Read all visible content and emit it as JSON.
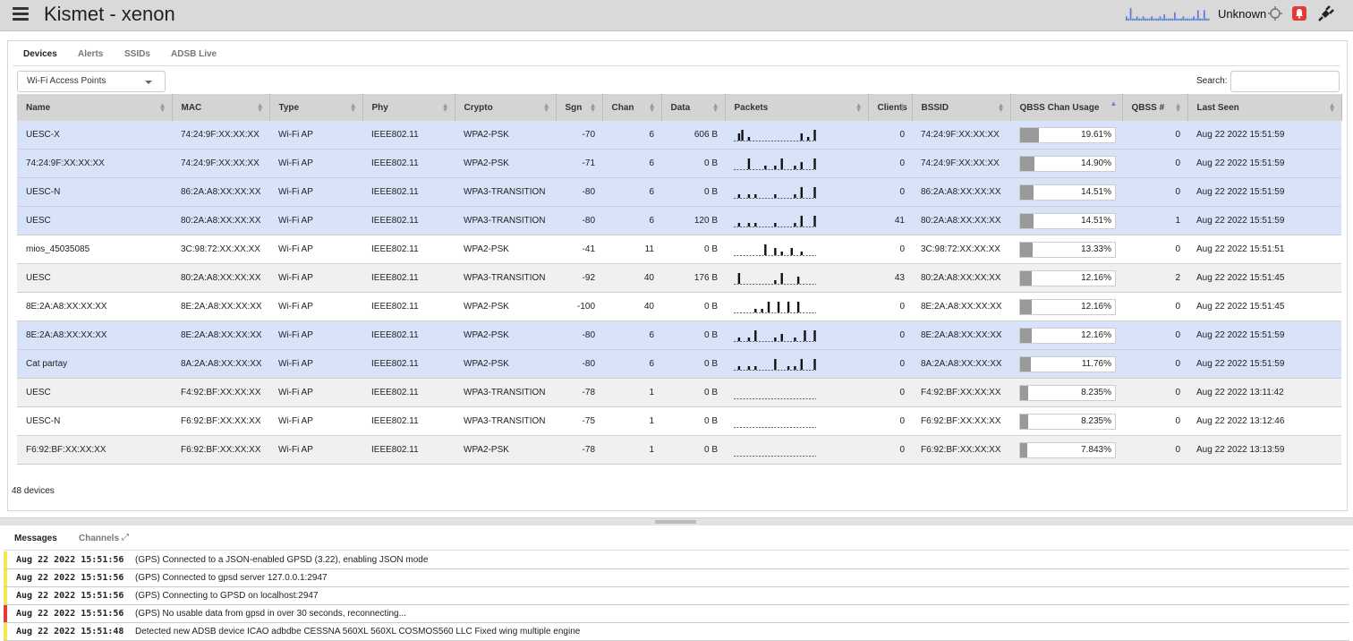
{
  "header": {
    "title": "Kismet - xenon",
    "gps_status": "Unknown",
    "sparkline": [
      2,
      1,
      6,
      1,
      1,
      2,
      1,
      1,
      2,
      1,
      1,
      1,
      2,
      1,
      1,
      1,
      2,
      1,
      3,
      1,
      1,
      1,
      1,
      4,
      1,
      1,
      1,
      2,
      1,
      1,
      1,
      1,
      2,
      1,
      5,
      1,
      1,
      5,
      1,
      1
    ],
    "colors": {
      "sparkline": "#5b7fd6",
      "alert": "#e53935"
    }
  },
  "tabs": [
    "Devices",
    "Alerts",
    "SSIDs",
    "ADSB Live"
  ],
  "toolbar": {
    "view_select": "Wi-Fi Access Points",
    "search_label": "Search:",
    "search_value": ""
  },
  "table": {
    "columns": [
      "Name",
      "MAC",
      "Type",
      "Phy",
      "Crypto",
      "Sgn",
      "Chan",
      "Data",
      "Packets",
      "Clients",
      "BSSID",
      "QBSS Chan Usage",
      "QBSS #",
      "Last Seen"
    ],
    "sorted_column": "QBSS Chan Usage",
    "rows": [
      {
        "style": "sel",
        "name": "UESC-X",
        "mac": "74:24:9F:XX:XX:XX",
        "type": "Wi-Fi AP",
        "phy": "IEEE802.11",
        "crypto": "WPA2-PSK",
        "sgn": "-70",
        "chan": "6",
        "data": "606 B",
        "packets": [
          0,
          2,
          3,
          0,
          1,
          0,
          0,
          0,
          0,
          0,
          0,
          0,
          0,
          0,
          0,
          0,
          0,
          0,
          0,
          0,
          2,
          0,
          1,
          0,
          3
        ],
        "clients": "0",
        "bssid": "74:24:9F:XX:XX:XX",
        "qbss_pct": 19.61,
        "qbss_label": "19.61%",
        "qbss_count": "0",
        "last_seen": "Aug 22 2022 15:51:59"
      },
      {
        "style": "sel",
        "name": "74:24:9F:XX:XX:XX",
        "mac": "74:24:9F:XX:XX:XX",
        "type": "Wi-Fi AP",
        "phy": "IEEE802.11",
        "crypto": "WPA2-PSK",
        "sgn": "-71",
        "chan": "6",
        "data": "0 B",
        "packets": [
          0,
          0,
          0,
          0,
          3,
          0,
          0,
          0,
          0,
          1,
          0,
          0,
          1,
          0,
          3,
          0,
          0,
          0,
          1,
          0,
          2,
          0,
          0,
          0,
          3
        ],
        "clients": "0",
        "bssid": "74:24:9F:XX:XX:XX",
        "qbss_pct": 14.9,
        "qbss_label": "14.90%",
        "qbss_count": "0",
        "last_seen": "Aug 22 2022 15:51:59"
      },
      {
        "style": "sel",
        "name": "UESC-N",
        "mac": "86:2A:A8:XX:XX:XX",
        "type": "Wi-Fi AP",
        "phy": "IEEE802.11",
        "crypto": "WPA3-TRANSITION",
        "sgn": "-80",
        "chan": "6",
        "data": "0 B",
        "packets": [
          0,
          1,
          0,
          0,
          1,
          0,
          1,
          0,
          0,
          0,
          0,
          0,
          1,
          0,
          0,
          0,
          0,
          0,
          1,
          0,
          3,
          0,
          0,
          0,
          3
        ],
        "clients": "0",
        "bssid": "86:2A:A8:XX:XX:XX",
        "qbss_pct": 14.51,
        "qbss_label": "14.51%",
        "qbss_count": "0",
        "last_seen": "Aug 22 2022 15:51:59"
      },
      {
        "style": "sel",
        "name": "UESC",
        "mac": "80:2A:A8:XX:XX:XX",
        "type": "Wi-Fi AP",
        "phy": "IEEE802.11",
        "crypto": "WPA3-TRANSITION",
        "sgn": "-80",
        "chan": "6",
        "data": "120 B",
        "packets": [
          0,
          1,
          0,
          0,
          1,
          0,
          1,
          0,
          0,
          0,
          0,
          0,
          1,
          0,
          0,
          0,
          0,
          0,
          1,
          0,
          3,
          0,
          0,
          0,
          3
        ],
        "clients": "41",
        "bssid": "80:2A:A8:XX:XX:XX",
        "qbss_pct": 14.51,
        "qbss_label": "14.51%",
        "qbss_count": "1",
        "last_seen": "Aug 22 2022 15:51:59"
      },
      {
        "style": "plain",
        "name": "mios_45035085",
        "mac": "3C:98:72:XX:XX:XX",
        "type": "Wi-Fi AP",
        "phy": "IEEE802.11",
        "crypto": "WPA2-PSK",
        "sgn": "-41",
        "chan": "11",
        "data": "0 B",
        "packets": [
          0,
          0,
          0,
          0,
          0,
          0,
          0,
          0,
          0,
          3,
          0,
          0,
          2,
          0,
          1,
          0,
          0,
          2,
          0,
          0,
          1,
          0,
          0,
          0,
          0
        ],
        "clients": "0",
        "bssid": "3C:98:72:XX:XX:XX",
        "qbss_pct": 13.33,
        "qbss_label": "13.33%",
        "qbss_count": "0",
        "last_seen": "Aug 22 2022 15:51:51"
      },
      {
        "style": "alt",
        "name": "UESC",
        "mac": "80:2A:A8:XX:XX:XX",
        "type": "Wi-Fi AP",
        "phy": "IEEE802.11",
        "crypto": "WPA3-TRANSITION",
        "sgn": "-92",
        "chan": "40",
        "data": "176 B",
        "packets": [
          0,
          3,
          0,
          0,
          0,
          0,
          0,
          0,
          0,
          0,
          0,
          0,
          1,
          0,
          3,
          0,
          0,
          0,
          0,
          2,
          0,
          0,
          0,
          0,
          0
        ],
        "clients": "43",
        "bssid": "80:2A:A8:XX:XX:XX",
        "qbss_pct": 12.16,
        "qbss_label": "12.16%",
        "qbss_count": "2",
        "last_seen": "Aug 22 2022 15:51:45"
      },
      {
        "style": "plain",
        "name": "8E:2A:A8:XX:XX:XX",
        "mac": "8E:2A:A8:XX:XX:XX",
        "type": "Wi-Fi AP",
        "phy": "IEEE802.11",
        "crypto": "WPA2-PSK",
        "sgn": "-100",
        "chan": "40",
        "data": "0 B",
        "packets": [
          0,
          0,
          0,
          0,
          0,
          0,
          1,
          0,
          1,
          0,
          3,
          0,
          0,
          3,
          0,
          0,
          3,
          0,
          0,
          3,
          0,
          0,
          0,
          0,
          0
        ],
        "clients": "0",
        "bssid": "8E:2A:A8:XX:XX:XX",
        "qbss_pct": 12.16,
        "qbss_label": "12.16%",
        "qbss_count": "0",
        "last_seen": "Aug 22 2022 15:51:45"
      },
      {
        "style": "sel",
        "name": "8E:2A:A8:XX:XX:XX",
        "mac": "8E:2A:A8:XX:XX:XX",
        "type": "Wi-Fi AP",
        "phy": "IEEE802.11",
        "crypto": "WPA2-PSK",
        "sgn": "-80",
        "chan": "6",
        "data": "0 B",
        "packets": [
          0,
          1,
          0,
          0,
          1,
          0,
          3,
          0,
          0,
          0,
          0,
          0,
          1,
          0,
          2,
          0,
          0,
          0,
          1,
          0,
          0,
          3,
          0,
          0,
          3
        ],
        "clients": "0",
        "bssid": "8E:2A:A8:XX:XX:XX",
        "qbss_pct": 12.16,
        "qbss_label": "12.16%",
        "qbss_count": "0",
        "last_seen": "Aug 22 2022 15:51:59"
      },
      {
        "style": "sel",
        "name": "Cat partay",
        "mac": "8A:2A:A8:XX:XX:XX",
        "type": "Wi-Fi AP",
        "phy": "IEEE802.11",
        "crypto": "WPA2-PSK",
        "sgn": "-80",
        "chan": "6",
        "data": "0 B",
        "packets": [
          0,
          1,
          0,
          0,
          1,
          0,
          1,
          0,
          0,
          0,
          0,
          0,
          3,
          0,
          0,
          0,
          1,
          0,
          1,
          0,
          3,
          0,
          0,
          0,
          3
        ],
        "clients": "0",
        "bssid": "8A:2A:A8:XX:XX:XX",
        "qbss_pct": 11.76,
        "qbss_label": "11.76%",
        "qbss_count": "0",
        "last_seen": "Aug 22 2022 15:51:59"
      },
      {
        "style": "alt",
        "name": "UESC",
        "mac": "F4:92:BF:XX:XX:XX",
        "type": "Wi-Fi AP",
        "phy": "IEEE802.11",
        "crypto": "WPA3-TRANSITION",
        "sgn": "-78",
        "chan": "1",
        "data": "0 B",
        "packets": [
          0,
          0,
          0,
          0,
          0,
          0,
          0,
          0,
          0,
          0,
          0,
          0,
          0,
          0,
          0,
          0,
          0,
          0,
          0,
          0,
          0,
          0,
          0,
          0,
          0
        ],
        "clients": "0",
        "bssid": "F4:92:BF:XX:XX:XX",
        "qbss_pct": 8.235,
        "qbss_label": "8.235%",
        "qbss_count": "0",
        "last_seen": "Aug 22 2022 13:11:42"
      },
      {
        "style": "plain",
        "name": "UESC-N",
        "mac": "F6:92:BF:XX:XX:XX",
        "type": "Wi-Fi AP",
        "phy": "IEEE802.11",
        "crypto": "WPA3-TRANSITION",
        "sgn": "-75",
        "chan": "1",
        "data": "0 B",
        "packets": [
          0,
          0,
          0,
          0,
          0,
          0,
          0,
          0,
          0,
          0,
          0,
          0,
          0,
          0,
          0,
          0,
          0,
          0,
          0,
          0,
          0,
          0,
          0,
          0,
          0
        ],
        "clients": "0",
        "bssid": "F6:92:BF:XX:XX:XX",
        "qbss_pct": 8.235,
        "qbss_label": "8.235%",
        "qbss_count": "0",
        "last_seen": "Aug 22 2022 13:12:46"
      },
      {
        "style": "alt",
        "name": "F6:92:BF:XX:XX:XX",
        "mac": "F6:92:BF:XX:XX:XX",
        "type": "Wi-Fi AP",
        "phy": "IEEE802.11",
        "crypto": "WPA2-PSK",
        "sgn": "-78",
        "chan": "1",
        "data": "0 B",
        "packets": [
          0,
          0,
          0,
          0,
          0,
          0,
          0,
          0,
          0,
          0,
          0,
          0,
          0,
          0,
          0,
          0,
          0,
          0,
          0,
          0,
          0,
          0,
          0,
          0,
          0
        ],
        "clients": "0",
        "bssid": "F6:92:BF:XX:XX:XX",
        "qbss_pct": 7.843,
        "qbss_label": "7.843%",
        "qbss_count": "0",
        "last_seen": "Aug 22 2022 13:13:59"
      }
    ]
  },
  "device_count": "48 devices",
  "bottom_tabs": [
    "Messages",
    "Channels"
  ],
  "messages": [
    {
      "level": "info",
      "timestamp": "Aug 22 2022 15:51:56",
      "text": "(GPS) Connected to a JSON-enabled GPSD (3.22), enabling JSON mode"
    },
    {
      "level": "info",
      "timestamp": "Aug 22 2022 15:51:56",
      "text": "(GPS) Connected to gpsd server 127.0.0.1:2947"
    },
    {
      "level": "info",
      "timestamp": "Aug 22 2022 15:51:56",
      "text": "(GPS) Connecting to GPSD on localhost:2947"
    },
    {
      "level": "error",
      "timestamp": "Aug 22 2022 15:51:56",
      "text": "(GPS) No usable data from gpsd in over 30 seconds, reconnecting..."
    },
    {
      "level": "info",
      "timestamp": "Aug 22 2022 15:51:48",
      "text": "Detected new ADSB device ICAO adbdbe CESSNA 560XL 560XL COSMOS560 LLC Fixed wing multiple engine"
    }
  ],
  "level_colors": {
    "info": "#f2e94e",
    "error": "#e53935"
  }
}
